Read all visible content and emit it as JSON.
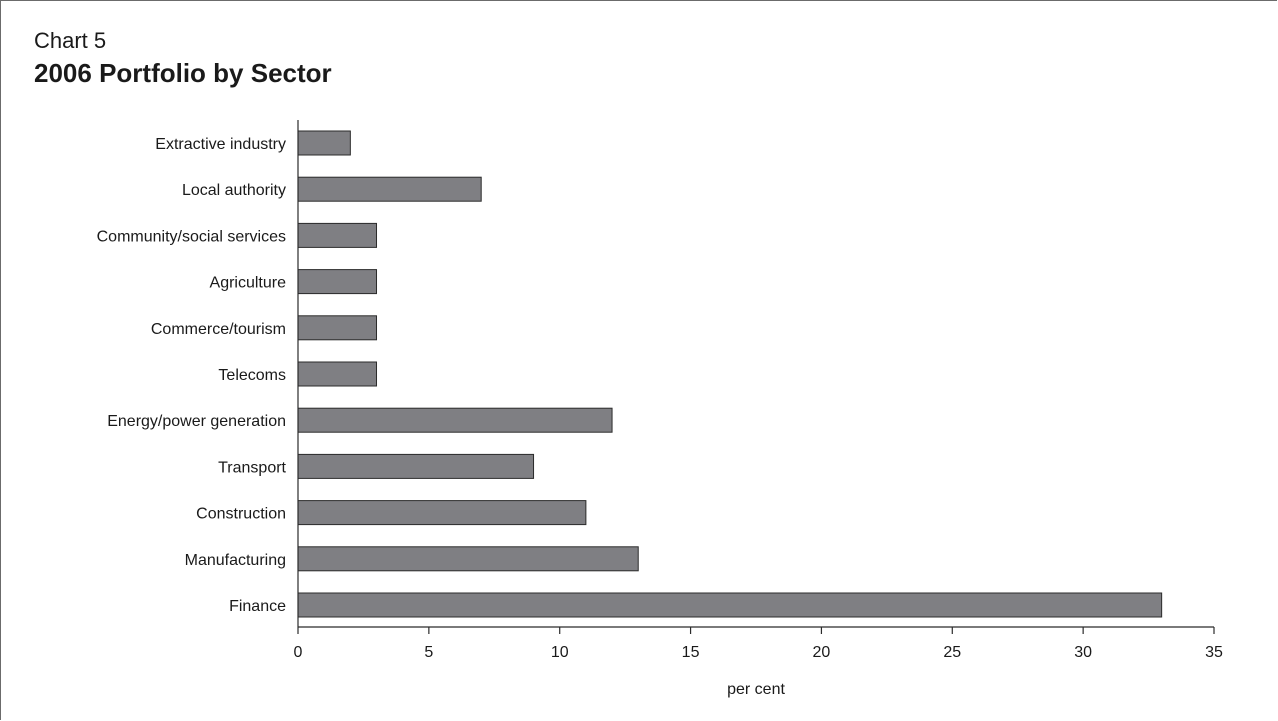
{
  "header": {
    "chart_number": "Chart 5",
    "title": "2006 Portfolio by Sector"
  },
  "chart_data": {
    "type": "bar",
    "orientation": "horizontal",
    "title": "2006 Portfolio by Sector",
    "xlabel": "per cent",
    "ylabel": "",
    "xlim": [
      0,
      35
    ],
    "xticks": [
      0,
      5,
      10,
      15,
      20,
      25,
      30,
      35
    ],
    "categories": [
      "Extractive industry",
      "Local authority",
      "Community/social services",
      "Agriculture",
      "Commerce/tourism",
      "Telecoms",
      "Energy/power generation",
      "Transport",
      "Construction",
      "Manufacturing",
      "Finance"
    ],
    "values": [
      2,
      7,
      3,
      3,
      3,
      3,
      12,
      9,
      11,
      13,
      33
    ],
    "bar_color": "#7f7f83",
    "grid": false,
    "legend": "none"
  }
}
